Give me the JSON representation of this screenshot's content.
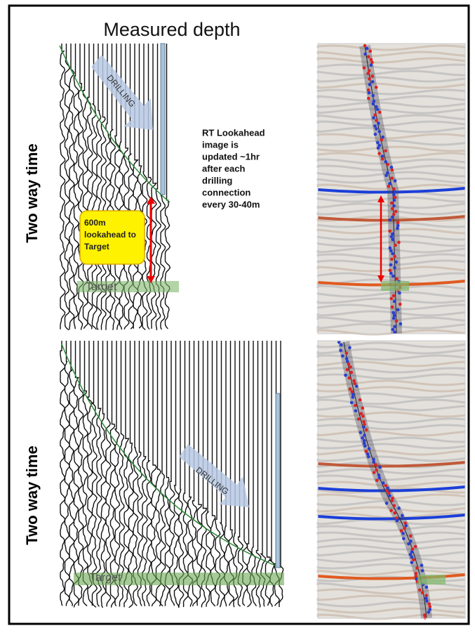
{
  "header": {
    "title": "Measured depth"
  },
  "panels": [
    {
      "y_label": "Two way time",
      "arrow_label": "DRILLING",
      "target_label": "Target",
      "callout": [
        "600m",
        "lookahead to",
        "Target"
      ]
    },
    {
      "y_label": "Two way time",
      "arrow_label": "DRILLING",
      "target_label": "Target"
    }
  ],
  "note": [
    "RT Lookahead",
    "image is",
    "updated ~1hr",
    "after each",
    "drilling",
    "connection",
    "every 30-40m"
  ]
}
